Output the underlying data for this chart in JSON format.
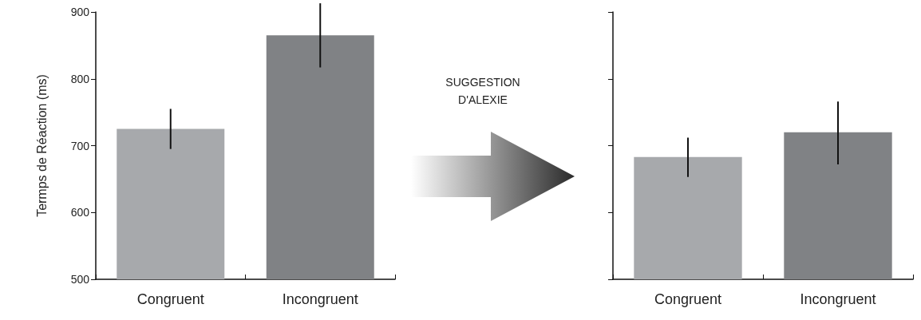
{
  "chart_data": [
    {
      "type": "bar",
      "ylabel": "Termps de Réaction (ms)",
      "categories": [
        "Congruent",
        "Incongruent"
      ],
      "values": [
        725,
        865
      ],
      "colors": [
        "#a7a9ac",
        "#808285"
      ],
      "errors": [
        [
          695,
          755
        ],
        [
          817,
          913
        ]
      ],
      "ylim": [
        500,
        900
      ],
      "yticks": [
        500,
        600,
        700,
        800,
        900
      ],
      "annotations": [
        "SUGGESTION D'ALEXIE"
      ]
    },
    {
      "type": "bar",
      "categories": [
        "Congruent",
        "Incongruent"
      ],
      "values": [
        683,
        720
      ],
      "colors": [
        "#a7a9ac",
        "#808285"
      ],
      "errors": [
        [
          653,
          712
        ],
        [
          672,
          766
        ]
      ],
      "ylim": [
        500,
        900
      ],
      "yticks": [
        500,
        600,
        700,
        800,
        900
      ],
      "tick_labels": "x"
    }
  ]
}
